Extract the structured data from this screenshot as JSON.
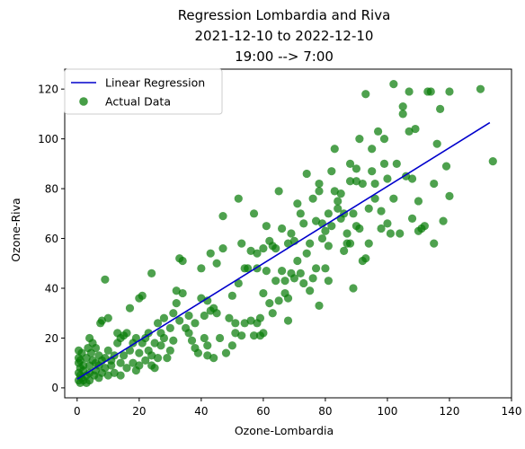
{
  "chart_data": {
    "type": "scatter",
    "title_lines": [
      "Regression Lombardia and Riva",
      "2021-12-10 to 2022-12-10",
      "19:00 --> 7:00"
    ],
    "xlabel": "Ozone-Lombardia",
    "ylabel": "Ozone-Riva",
    "xlim": [
      -4,
      140
    ],
    "ylim": [
      -4,
      128
    ],
    "xticks": [
      0,
      20,
      40,
      60,
      80,
      100,
      120,
      140
    ],
    "yticks": [
      0,
      20,
      40,
      60,
      80,
      100,
      120
    ],
    "grid": false,
    "legend_position": "upper-left",
    "regression": {
      "name": "Linear Regression",
      "color": "#0000cc",
      "x": [
        0,
        133
      ],
      "y": [
        3.5,
        106.5
      ]
    },
    "scatter": {
      "name": "Actual Data",
      "color": "#0a7d0a",
      "points": [
        [
          0.5,
          3
        ],
        [
          0.5,
          6
        ],
        [
          0.5,
          10
        ],
        [
          0.5,
          12
        ],
        [
          0.5,
          15
        ],
        [
          1,
          2
        ],
        [
          1,
          5
        ],
        [
          1,
          8
        ],
        [
          1,
          11
        ],
        [
          1.5,
          4
        ],
        [
          1.5,
          14
        ],
        [
          2,
          3
        ],
        [
          2,
          7
        ],
        [
          2,
          9
        ],
        [
          3,
          2
        ],
        [
          3,
          5
        ],
        [
          3,
          12
        ],
        [
          3.5,
          16
        ],
        [
          4,
          3
        ],
        [
          4,
          6
        ],
        [
          4,
          9
        ],
        [
          4,
          20
        ],
        [
          4.5,
          14
        ],
        [
          5,
          11
        ],
        [
          5,
          18
        ],
        [
          5.5,
          5
        ],
        [
          6,
          7
        ],
        [
          6,
          10
        ],
        [
          6,
          16
        ],
        [
          7,
          4
        ],
        [
          7,
          9
        ],
        [
          7,
          13
        ],
        [
          7.5,
          26
        ],
        [
          8,
          6
        ],
        [
          8,
          11
        ],
        [
          8,
          27
        ],
        [
          9,
          8
        ],
        [
          9,
          12
        ],
        [
          9,
          43.5
        ],
        [
          10,
          5
        ],
        [
          10,
          15
        ],
        [
          10,
          28
        ],
        [
          11,
          9
        ],
        [
          11,
          11
        ],
        [
          12,
          6
        ],
        [
          12,
          13
        ],
        [
          13,
          18
        ],
        [
          13,
          22
        ],
        [
          14,
          5
        ],
        [
          14,
          10
        ],
        [
          14,
          20
        ],
        [
          15,
          21
        ],
        [
          15,
          13
        ],
        [
          16,
          8
        ],
        [
          16,
          22
        ],
        [
          17,
          15
        ],
        [
          17,
          32
        ],
        [
          18,
          10
        ],
        [
          18,
          18
        ],
        [
          19,
          7
        ],
        [
          19,
          20
        ],
        [
          20,
          9
        ],
        [
          20,
          14
        ],
        [
          20,
          36
        ],
        [
          21,
          18
        ],
        [
          21,
          37
        ],
        [
          22,
          11
        ],
        [
          22,
          20
        ],
        [
          23,
          15
        ],
        [
          23,
          22
        ],
        [
          24,
          9
        ],
        [
          24,
          13
        ],
        [
          24,
          46
        ],
        [
          25,
          8
        ],
        [
          25,
          18
        ],
        [
          26,
          12
        ],
        [
          26,
          26
        ],
        [
          27,
          17
        ],
        [
          27,
          22
        ],
        [
          28,
          20
        ],
        [
          28,
          28
        ],
        [
          29,
          12
        ],
        [
          30,
          15
        ],
        [
          30,
          24
        ],
        [
          31,
          30
        ],
        [
          31,
          19
        ],
        [
          32,
          34
        ],
        [
          32,
          39
        ],
        [
          33,
          27
        ],
        [
          33,
          52
        ],
        [
          34,
          38
        ],
        [
          34,
          51
        ],
        [
          35,
          24
        ],
        [
          36,
          22
        ],
        [
          36,
          29
        ],
        [
          37,
          19
        ],
        [
          38,
          16
        ],
        [
          38,
          26
        ],
        [
          39,
          14
        ],
        [
          40,
          36
        ],
        [
          40,
          48
        ],
        [
          41,
          29
        ],
        [
          41,
          20
        ],
        [
          42,
          13
        ],
        [
          42,
          17
        ],
        [
          42,
          35
        ],
        [
          43,
          54
        ],
        [
          43,
          31
        ],
        [
          44,
          32
        ],
        [
          44,
          12
        ],
        [
          45,
          30
        ],
        [
          45,
          50
        ],
        [
          46,
          20
        ],
        [
          47,
          56
        ],
        [
          47,
          69
        ],
        [
          48,
          14
        ],
        [
          49,
          28
        ],
        [
          50,
          37
        ],
        [
          50,
          17
        ],
        [
          51,
          26
        ],
        [
          51,
          22
        ],
        [
          52,
          76
        ],
        [
          52,
          42
        ],
        [
          53,
          58
        ],
        [
          53,
          21
        ],
        [
          54,
          26
        ],
        [
          54,
          48
        ],
        [
          55,
          48
        ],
        [
          56,
          27
        ],
        [
          56,
          55
        ],
        [
          57,
          70
        ],
        [
          57,
          21
        ],
        [
          58,
          48
        ],
        [
          58,
          54
        ],
        [
          58,
          26
        ],
        [
          59,
          28
        ],
        [
          59,
          21
        ],
        [
          60,
          22
        ],
        [
          60,
          38
        ],
        [
          60,
          56
        ],
        [
          61,
          65
        ],
        [
          61,
          47
        ],
        [
          62,
          59
        ],
        [
          62,
          34
        ],
        [
          63,
          30
        ],
        [
          63,
          57
        ],
        [
          64,
          56
        ],
        [
          64,
          43
        ],
        [
          65,
          79
        ],
        [
          65,
          35
        ],
        [
          66,
          64
        ],
        [
          66,
          47
        ],
        [
          67,
          38
        ],
        [
          67,
          43
        ],
        [
          68,
          58
        ],
        [
          68,
          27
        ],
        [
          68,
          36
        ],
        [
          69,
          46
        ],
        [
          69,
          62
        ],
        [
          70,
          59
        ],
        [
          70,
          44
        ],
        [
          71,
          74
        ],
        [
          71,
          51
        ],
        [
          72,
          46
        ],
        [
          72,
          70
        ],
        [
          73,
          66
        ],
        [
          73,
          42
        ],
        [
          74,
          54
        ],
        [
          74,
          86
        ],
        [
          75,
          58
        ],
        [
          75,
          39
        ],
        [
          76,
          76
        ],
        [
          76,
          44
        ],
        [
          77,
          48
        ],
        [
          77,
          67
        ],
        [
          78,
          82
        ],
        [
          78,
          79
        ],
        [
          78,
          33
        ],
        [
          79,
          66
        ],
        [
          79,
          60
        ],
        [
          80,
          63
        ],
        [
          80,
          48
        ],
        [
          81,
          57
        ],
        [
          81,
          43
        ],
        [
          81,
          70
        ],
        [
          82,
          87
        ],
        [
          82,
          65
        ],
        [
          83,
          96
        ],
        [
          83,
          79
        ],
        [
          84,
          75
        ],
        [
          84,
          72
        ],
        [
          85,
          78
        ],
        [
          85,
          68
        ],
        [
          86,
          70
        ],
        [
          86,
          55
        ],
        [
          87,
          58
        ],
        [
          87,
          62
        ],
        [
          88,
          90
        ],
        [
          88,
          83
        ],
        [
          88,
          58
        ],
        [
          89,
          70
        ],
        [
          89,
          40
        ],
        [
          90,
          88
        ],
        [
          90,
          83
        ],
        [
          90,
          65
        ],
        [
          91,
          100
        ],
        [
          91,
          64
        ],
        [
          92,
          82
        ],
        [
          92,
          51
        ],
        [
          93,
          52
        ],
        [
          93,
          118
        ],
        [
          94,
          72
        ],
        [
          94,
          58
        ],
        [
          95,
          96
        ],
        [
          95,
          87
        ],
        [
          96,
          82
        ],
        [
          96,
          76
        ],
        [
          97,
          103
        ],
        [
          98,
          71
        ],
        [
          98,
          64
        ],
        [
          99,
          100
        ],
        [
          99,
          90
        ],
        [
          100,
          84
        ],
        [
          100,
          66
        ],
        [
          101,
          62
        ],
        [
          102,
          122
        ],
        [
          102,
          76
        ],
        [
          103,
          90
        ],
        [
          104,
          62
        ],
        [
          105,
          113
        ],
        [
          105,
          110
        ],
        [
          106,
          85
        ],
        [
          107,
          119
        ],
        [
          107,
          103
        ],
        [
          108,
          68
        ],
        [
          108,
          84
        ],
        [
          109,
          104
        ],
        [
          110,
          75
        ],
        [
          110,
          63
        ],
        [
          111,
          64
        ],
        [
          112,
          65
        ],
        [
          113,
          119
        ],
        [
          114,
          119
        ],
        [
          115,
          58
        ],
        [
          115,
          82
        ],
        [
          116,
          98
        ],
        [
          117,
          112
        ],
        [
          118,
          67
        ],
        [
          119,
          89
        ],
        [
          120,
          119
        ],
        [
          120,
          77
        ],
        [
          130,
          120
        ],
        [
          134,
          91
        ]
      ]
    }
  }
}
